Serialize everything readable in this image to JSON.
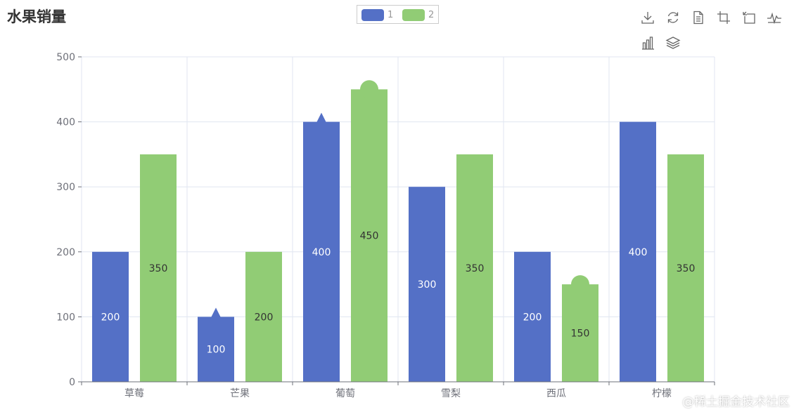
{
  "chart_data": {
    "type": "bar",
    "title": "水果销量",
    "categories": [
      "草莓",
      "芒果",
      "葡萄",
      "雪梨",
      "西瓜",
      "柠檬"
    ],
    "series": [
      {
        "name": "1",
        "values": [
          200,
          100,
          400,
          300,
          200,
          400
        ],
        "color": "#5470c6",
        "label_color": "#ffffff"
      },
      {
        "name": "2",
        "values": [
          350,
          200,
          450,
          350,
          150,
          350
        ],
        "color": "#91cc75",
        "label_color": "#333333"
      }
    ],
    "ylim": [
      0,
      500
    ],
    "yticks": [
      0,
      100,
      200,
      300,
      400,
      500
    ],
    "grid": true,
    "legend": "top-center",
    "markers": [
      {
        "series": 0,
        "category": "芒果",
        "shape": "triangle"
      },
      {
        "series": 0,
        "category": "葡萄",
        "shape": "triangle"
      },
      {
        "series": 1,
        "category": "葡萄",
        "shape": "circle"
      },
      {
        "series": 1,
        "category": "西瓜",
        "shape": "circle"
      }
    ]
  },
  "toolbox": {
    "icons": [
      "download-icon",
      "refresh-icon",
      "data-view-icon",
      "zoom-icon",
      "zoom-reset-icon",
      "line-switch-icon",
      "bar-switch-icon",
      "stack-icon"
    ]
  },
  "watermark": "@稀土掘金技术社区"
}
